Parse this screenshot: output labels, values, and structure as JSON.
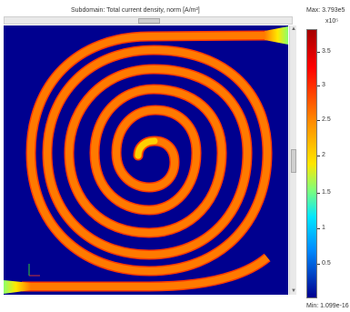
{
  "plot": {
    "title": "Subdomain: Total current density, norm [A/m²]"
  },
  "colorbar": {
    "max_label": "Max: 3.793e5",
    "min_label": "Min: 1.099e-16",
    "exponent": "x10⁵",
    "ticks": [
      "3.5",
      "3",
      "2.5",
      "2",
      "1.5",
      "1",
      "0.5"
    ]
  },
  "colors": {
    "background": "#00008f",
    "spiral": "#ff7a00",
    "spiral_edge": "#ff3a00",
    "terminal": "#8cff6a"
  }
}
